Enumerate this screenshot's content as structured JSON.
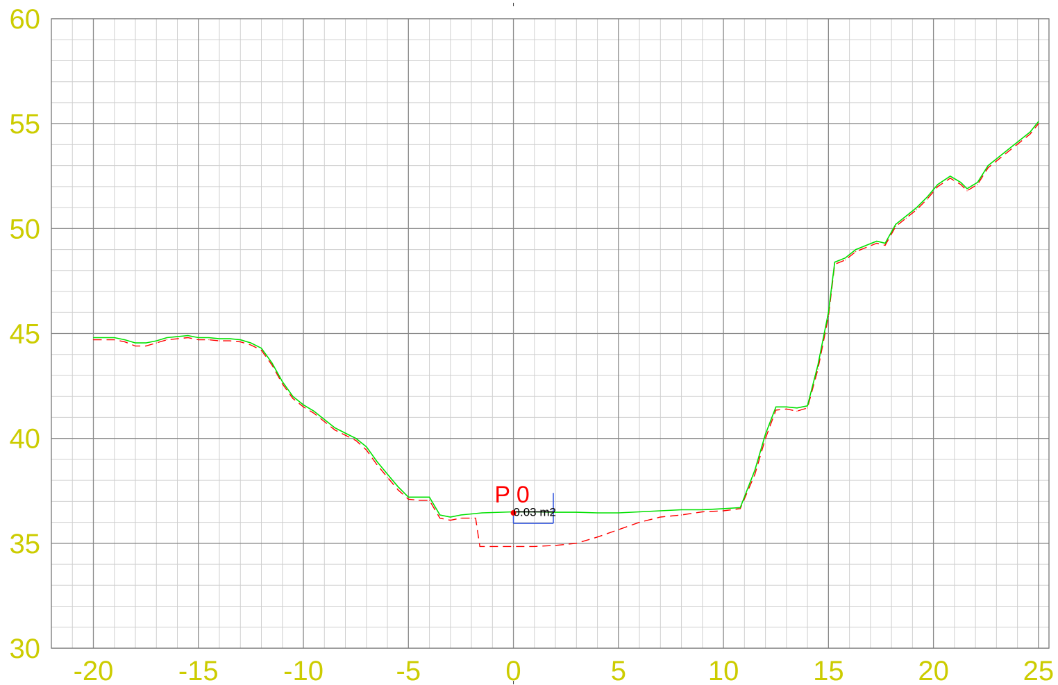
{
  "chart_data": {
    "type": "line",
    "title": "",
    "xlabel": "",
    "ylabel": "",
    "xlim": [
      -22,
      25.5
    ],
    "ylim": [
      30,
      60
    ],
    "x_ticks": [
      -20,
      -15,
      -10,
      -5,
      0,
      5,
      10,
      15,
      20,
      25
    ],
    "y_ticks": [
      30,
      35,
      40,
      45,
      50,
      55,
      60
    ],
    "x_tick_labels": [
      "-20",
      "-15",
      "-10",
      "-5",
      "0",
      "5",
      "10",
      "15",
      "20",
      "25"
    ],
    "y_tick_labels": [
      "30",
      "35",
      "40",
      "45",
      "50",
      "55",
      "60"
    ],
    "grid": true,
    "colors": {
      "terrain": "#00e000",
      "design": "#ff0000",
      "tick_labels": "#cccc00",
      "grid_major": "#888888",
      "grid_minor": "#cfcfcf",
      "marker": "#3355dd"
    },
    "series": [
      {
        "style": "solid",
        "x": [
          -20,
          -19,
          -18.5,
          -18,
          -17.5,
          -17,
          -16.5,
          -16,
          -15.5,
          -15,
          -14.5,
          -14,
          -13.5,
          -13,
          -12.5,
          -12,
          -11.5,
          -11,
          -10.5,
          -10,
          -9.5,
          -9,
          -8.5,
          -8,
          -7.5,
          -7,
          -6.5,
          -6,
          -5.5,
          -5,
          -4.5,
          -4,
          -3.5,
          -3,
          -2.5,
          -2,
          -1.5,
          0,
          1,
          2,
          3,
          4,
          5,
          6,
          7,
          8,
          9,
          10,
          10.8,
          11.5,
          12,
          12.5,
          13,
          13.5,
          14,
          14.5,
          15,
          15.3,
          15.8,
          16.3,
          16.8,
          17.3,
          17.7,
          18.2,
          18.7,
          19.2,
          19.7,
          20.2,
          20.8,
          21.3,
          21.6,
          22.1,
          22.6,
          23.1,
          23.6,
          24.1,
          24.6,
          25
        ],
        "y": [
          44.8,
          44.8,
          44.7,
          44.55,
          44.55,
          44.65,
          44.8,
          44.85,
          44.9,
          44.8,
          44.8,
          44.75,
          44.75,
          44.7,
          44.55,
          44.3,
          43.6,
          42.7,
          42,
          41.6,
          41.3,
          40.9,
          40.5,
          40.25,
          40,
          39.6,
          38.9,
          38.3,
          37.7,
          37.2,
          37.2,
          37.2,
          36.35,
          36.25,
          36.35,
          36.4,
          36.45,
          36.5,
          36.5,
          36.48,
          36.48,
          36.45,
          36.45,
          36.5,
          36.55,
          36.6,
          36.6,
          36.65,
          36.7,
          38.5,
          40.2,
          41.5,
          41.5,
          41.45,
          41.55,
          43.5,
          46,
          48.4,
          48.6,
          49,
          49.2,
          49.4,
          49.3,
          50.2,
          50.6,
          51,
          51.5,
          52.1,
          52.5,
          52.2,
          51.9,
          52.2,
          53,
          53.4,
          53.8,
          54.2,
          54.6,
          55.1
        ]
      },
      {
        "style": "dashed",
        "x": [
          -20,
          -19,
          -18.5,
          -18,
          -17.5,
          -17,
          -16.5,
          -16,
          -15.5,
          -15,
          -14.5,
          -14,
          -13.5,
          -13,
          -12.5,
          -12,
          -11.5,
          -11,
          -10.5,
          -10,
          -9.5,
          -9,
          -8.5,
          -8,
          -7.5,
          -7,
          -6.5,
          -6,
          -5.5,
          -5,
          -4.5,
          -4,
          -3.5,
          -3,
          -2.5,
          -2,
          -1.8,
          -1.6,
          0,
          1,
          2,
          3,
          4,
          5,
          6,
          7,
          8,
          9,
          10,
          10.8,
          11.5,
          12,
          12.5,
          13,
          13.5,
          14,
          14.5,
          15,
          15.3,
          15.8,
          16.3,
          16.8,
          17.3,
          17.7,
          18.2,
          18.7,
          19.2,
          19.7,
          20.2,
          20.8,
          21.3,
          21.6,
          22.1,
          22.6,
          23.1,
          23.6,
          24.1,
          24.6,
          25
        ],
        "y": [
          44.7,
          44.7,
          44.6,
          44.4,
          44.4,
          44.55,
          44.7,
          44.75,
          44.8,
          44.7,
          44.7,
          44.65,
          44.65,
          44.6,
          44.45,
          44.2,
          43.5,
          42.6,
          41.9,
          41.5,
          41.2,
          40.8,
          40.4,
          40.15,
          39.9,
          39.45,
          38.75,
          38.15,
          37.55,
          37.1,
          37.05,
          37.05,
          36.2,
          36.1,
          36.2,
          36.2,
          36.2,
          34.85,
          34.85,
          34.85,
          34.9,
          35,
          35.3,
          35.65,
          36,
          36.25,
          36.35,
          36.5,
          36.55,
          36.65,
          38.3,
          40,
          41.35,
          41.4,
          41.3,
          41.45,
          43.3,
          45.8,
          48.3,
          48.5,
          48.9,
          49.1,
          49.3,
          49.2,
          50.1,
          50.5,
          50.9,
          51.4,
          52,
          52.4,
          52.1,
          51.8,
          52.1,
          52.9,
          53.3,
          53.7,
          54.1,
          54.5,
          55
        ]
      }
    ],
    "annotations": {
      "point_label": "P 0",
      "area_label": "0.03 m2"
    }
  }
}
